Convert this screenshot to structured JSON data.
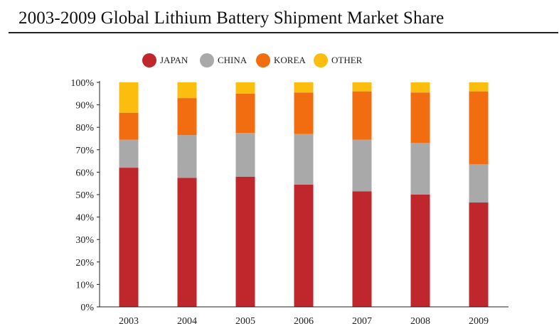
{
  "chart_data": {
    "type": "bar",
    "stacked": true,
    "title": "2003-2009 Global Lithium Battery Shipment Market Share",
    "xlabel": "",
    "ylabel": "",
    "ylim": [
      0,
      100
    ],
    "yticks": [
      "0%",
      "10%",
      "20%",
      "30%",
      "40%",
      "50%",
      "60%",
      "70%",
      "80%",
      "90%",
      "100%"
    ],
    "categories": [
      "2003",
      "2004",
      "2005",
      "2006",
      "2007",
      "2008",
      "2009"
    ],
    "legend_position": "top",
    "series": [
      {
        "name": "JAPAN",
        "color": "#c0272d",
        "values": [
          62,
          57.5,
          58,
          54.5,
          51.5,
          50,
          46.5
        ]
      },
      {
        "name": "CHINA",
        "color": "#a9a9a9",
        "values": [
          12.5,
          19,
          19.5,
          22.5,
          23,
          23,
          17
        ]
      },
      {
        "name": "KOREA",
        "color": "#f26d10",
        "values": [
          12,
          16.5,
          17.5,
          18.5,
          21.5,
          22.5,
          32.5
        ]
      },
      {
        "name": "OTHER",
        "color": "#fbbd0e",
        "values": [
          13.5,
          7,
          5,
          4.5,
          4,
          4.5,
          4
        ]
      }
    ]
  }
}
